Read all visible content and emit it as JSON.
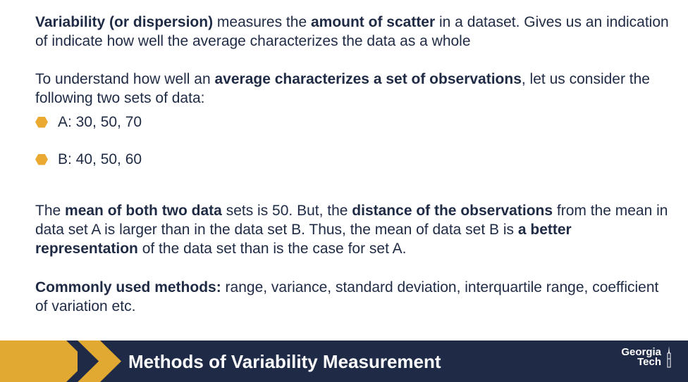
{
  "paragraphs": {
    "p1": [
      {
        "text": "Variability (or dispersion)",
        "bold": true
      },
      {
        "text": " measures the ",
        "bold": false
      },
      {
        "text": "amount of scatter",
        "bold": true
      },
      {
        "text": " in a dataset. Gives us an indication of indicate how well the average characterizes the data as a whole",
        "bold": false
      }
    ],
    "p2": [
      {
        "text": "To understand how well an ",
        "bold": false
      },
      {
        "text": "average characterizes a set of observations",
        "bold": true
      },
      {
        "text": ", let us consider the following two sets of data:",
        "bold": false
      }
    ],
    "p3": [
      {
        "text": "The ",
        "bold": false
      },
      {
        "text": "mean of both two data",
        "bold": true
      },
      {
        "text": " sets is 50. But, the ",
        "bold": false
      },
      {
        "text": "distance of the observations",
        "bold": true
      },
      {
        "text": " from the mean in data set A is larger than in the data set B. Thus, the mean of data set B is ",
        "bold": false
      },
      {
        "text": "a better representation",
        "bold": true
      },
      {
        "text": " of the data set than is the case for set A.",
        "bold": false
      }
    ],
    "p4": [
      {
        "text": "Commonly used methods:",
        "bold": true
      },
      {
        "text": " range, variance, standard deviation, interquartile range, coefficient of variation etc.",
        "bold": false
      }
    ]
  },
  "bullets": [
    {
      "label": "A: 30, 50, 70"
    },
    {
      "label": "B: 40, 50, 60"
    }
  ],
  "footer": {
    "title": "Methods of Variability Measurement",
    "logo_line1": "Georgia",
    "logo_line2": "Tech"
  },
  "colors": {
    "navy": "#1e2a46",
    "gold": "#e2a932",
    "bullet": "#eaaa31",
    "text": "#1f2a44"
  }
}
